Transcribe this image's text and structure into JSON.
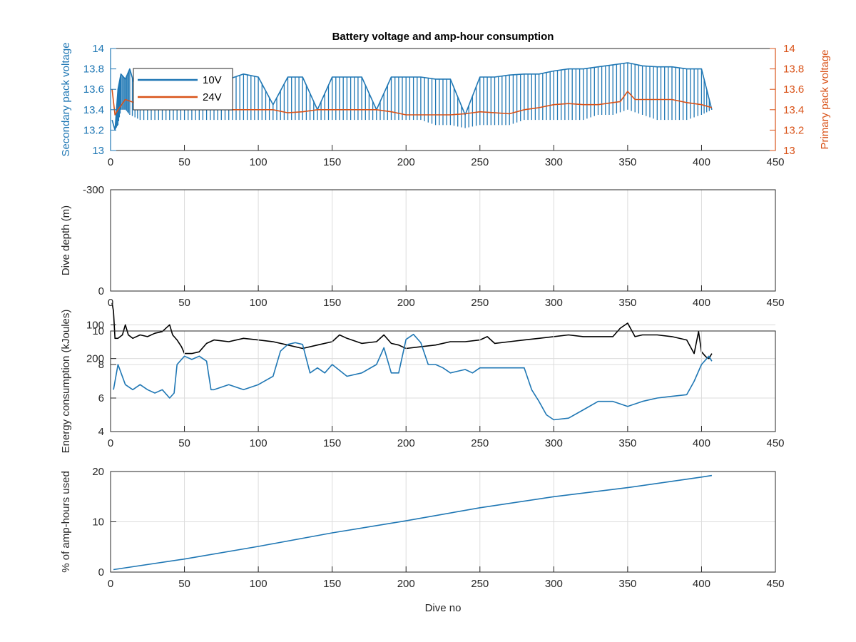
{
  "figure": {
    "title": "Battery voltage and amp-hour consumption",
    "xlabel": "Dive no"
  },
  "chart_data": [
    {
      "type": "line",
      "title": "Battery voltage and amp-hour consumption",
      "xlabel": "",
      "ylabel": "Secondary pack voltage",
      "ylabel_right": "Primary pack voltage",
      "xlim": [
        0,
        450
      ],
      "ylim": [
        13,
        14
      ],
      "ylim_right": [
        13,
        14
      ],
      "xticks": [
        0,
        50,
        100,
        150,
        200,
        250,
        300,
        350,
        400,
        450
      ],
      "yticks": [
        13,
        13.2,
        13.4,
        13.6,
        13.8,
        14
      ],
      "yticks_right": [
        13,
        13.2,
        13.4,
        13.6,
        13.8,
        14
      ],
      "grid": false,
      "legend": "top-left",
      "colors": {
        "10V": "#1f77b4",
        "24V": "#d95319"
      },
      "series": [
        {
          "name": "10V",
          "axis": "left",
          "color": "#1f77b4",
          "x": [
            1,
            3,
            5,
            7,
            10,
            13,
            20,
            30,
            40,
            50,
            60,
            70,
            80,
            90,
            100,
            110,
            120,
            130,
            140,
            150,
            160,
            170,
            180,
            190,
            200,
            210,
            220,
            230,
            240,
            250,
            260,
            270,
            280,
            290,
            300,
            310,
            320,
            330,
            340,
            350,
            360,
            370,
            380,
            390,
            400,
            407
          ],
          "y": [
            13.3,
            13.2,
            13.6,
            13.75,
            13.7,
            13.8,
            13.45,
            13.5,
            13.75,
            13.5,
            13.75,
            13.4,
            13.7,
            13.75,
            13.72,
            13.45,
            13.72,
            13.72,
            13.4,
            13.72,
            13.72,
            13.72,
            13.4,
            13.72,
            13.72,
            13.72,
            13.7,
            13.7,
            13.35,
            13.72,
            13.72,
            13.74,
            13.75,
            13.75,
            13.78,
            13.8,
            13.8,
            13.82,
            13.84,
            13.86,
            13.83,
            13.82,
            13.82,
            13.8,
            13.8,
            13.4
          ],
          "band_low": [
            13.3,
            13.2,
            13.25,
            13.4,
            13.4,
            13.35,
            13.3,
            13.3,
            13.3,
            13.3,
            13.3,
            13.3,
            13.3,
            13.3,
            13.3,
            13.3,
            13.3,
            13.3,
            13.3,
            13.3,
            13.3,
            13.3,
            13.3,
            13.3,
            13.3,
            13.3,
            13.25,
            13.25,
            13.22,
            13.25,
            13.25,
            13.25,
            13.3,
            13.3,
            13.3,
            13.3,
            13.3,
            13.35,
            13.35,
            13.4,
            13.35,
            13.3,
            13.3,
            13.3,
            13.35,
            13.4
          ]
        },
        {
          "name": "24V",
          "axis": "right",
          "color": "#d95319",
          "x": [
            1,
            3,
            5,
            10,
            20,
            30,
            40,
            50,
            60,
            70,
            80,
            90,
            100,
            110,
            120,
            130,
            140,
            150,
            160,
            170,
            180,
            190,
            200,
            210,
            220,
            230,
            240,
            250,
            260,
            270,
            280,
            290,
            300,
            310,
            320,
            330,
            340,
            345,
            350,
            355,
            360,
            370,
            380,
            390,
            400,
            407
          ],
          "y": [
            13.6,
            13.35,
            13.4,
            13.5,
            13.45,
            13.42,
            13.42,
            13.42,
            13.4,
            13.42,
            13.4,
            13.4,
            13.4,
            13.4,
            13.37,
            13.38,
            13.4,
            13.4,
            13.4,
            13.4,
            13.4,
            13.38,
            13.35,
            13.35,
            13.35,
            13.35,
            13.36,
            13.38,
            13.37,
            13.36,
            13.4,
            13.42,
            13.45,
            13.46,
            13.45,
            13.45,
            13.47,
            13.48,
            13.58,
            13.5,
            13.5,
            13.5,
            13.5,
            13.47,
            13.45,
            13.42
          ]
        }
      ]
    },
    {
      "type": "line",
      "xlabel": "",
      "ylabel": "Dive depth (m)",
      "xlim": [
        0,
        450
      ],
      "ylim": [
        0,
        -300
      ],
      "xticks": [
        0,
        50,
        100,
        150,
        200,
        250,
        300,
        350,
        400,
        450
      ],
      "yticks": [
        0,
        100,
        200,
        -300
      ],
      "ytick_labels": [
        "0",
        "100",
        "200",
        "-300"
      ],
      "grid": true,
      "series": [
        {
          "color": "#000000",
          "x": [
            1,
            2,
            3,
            5,
            8,
            10,
            12,
            15,
            20,
            25,
            30,
            35,
            40,
            42,
            45,
            48,
            50,
            55,
            60,
            65,
            70,
            80,
            90,
            100,
            110,
            120,
            130,
            140,
            150,
            155,
            160,
            170,
            180,
            185,
            190,
            195,
            200,
            210,
            220,
            230,
            240,
            250,
            255,
            260,
            270,
            280,
            290,
            300,
            310,
            320,
            330,
            340,
            345,
            350,
            355,
            360,
            370,
            380,
            390,
            395,
            398,
            400,
            403,
            405,
            407
          ],
          "y": [
            35,
            60,
            140,
            140,
            130,
            100,
            130,
            140,
            130,
            135,
            125,
            120,
            100,
            130,
            145,
            165,
            185,
            185,
            180,
            155,
            145,
            150,
            140,
            145,
            150,
            160,
            170,
            160,
            150,
            130,
            140,
            155,
            150,
            130,
            155,
            160,
            170,
            165,
            160,
            150,
            150,
            145,
            135,
            155,
            150,
            145,
            140,
            135,
            130,
            135,
            135,
            135,
            110,
            95,
            135,
            130,
            130,
            135,
            145,
            185,
            120,
            180,
            195,
            200,
            185
          ]
        }
      ]
    },
    {
      "type": "line",
      "xlabel": "",
      "ylabel": "Energy consumption (kJoules)",
      "xlim": [
        0,
        450
      ],
      "ylim": [
        4,
        10
      ],
      "xticks": [
        0,
        50,
        100,
        150,
        200,
        250,
        300,
        350,
        400,
        450
      ],
      "yticks": [
        4,
        6,
        8,
        10
      ],
      "grid": true,
      "series": [
        {
          "color": "#1f77b4",
          "x": [
            2,
            5,
            10,
            15,
            20,
            25,
            30,
            35,
            40,
            43,
            45,
            50,
            55,
            60,
            65,
            68,
            70,
            80,
            90,
            100,
            110,
            115,
            120,
            125,
            130,
            135,
            140,
            145,
            150,
            160,
            170,
            180,
            185,
            190,
            195,
            200,
            205,
            210,
            215,
            220,
            225,
            230,
            235,
            240,
            245,
            250,
            255,
            260,
            270,
            280,
            285,
            290,
            295,
            300,
            310,
            320,
            330,
            340,
            350,
            360,
            370,
            380,
            390,
            395,
            400,
            405,
            407
          ],
          "y": [
            6.5,
            8.0,
            6.8,
            6.5,
            6.8,
            6.5,
            6.3,
            6.5,
            6.0,
            6.3,
            8.0,
            8.5,
            8.3,
            8.5,
            8.2,
            6.5,
            6.5,
            6.8,
            6.5,
            6.8,
            7.3,
            8.8,
            9.2,
            9.3,
            9.2,
            7.5,
            7.8,
            7.5,
            8.0,
            7.3,
            7.5,
            8.0,
            9.0,
            7.5,
            7.5,
            9.5,
            9.8,
            9.3,
            8.0,
            8.0,
            7.8,
            7.5,
            7.6,
            7.7,
            7.5,
            7.8,
            7.8,
            7.8,
            7.8,
            7.8,
            6.5,
            5.8,
            5.0,
            4.7,
            4.8,
            5.3,
            5.8,
            5.8,
            5.5,
            5.8,
            6.0,
            6.1,
            6.2,
            7.0,
            8.0,
            8.5,
            8.2
          ]
        }
      ]
    },
    {
      "type": "line",
      "xlabel": "Dive no",
      "ylabel": "% of amp-hours used",
      "xlim": [
        0,
        450
      ],
      "ylim": [
        0,
        20
      ],
      "xticks": [
        0,
        50,
        100,
        150,
        200,
        250,
        300,
        350,
        400,
        450
      ],
      "yticks": [
        0,
        10,
        20
      ],
      "grid": true,
      "series": [
        {
          "color": "#1f77b4",
          "x": [
            2,
            50,
            100,
            150,
            200,
            250,
            300,
            350,
            400,
            407
          ],
          "y": [
            0.5,
            2.6,
            5.1,
            7.8,
            10.2,
            12.8,
            15.0,
            16.8,
            18.9,
            19.2
          ]
        }
      ]
    }
  ]
}
